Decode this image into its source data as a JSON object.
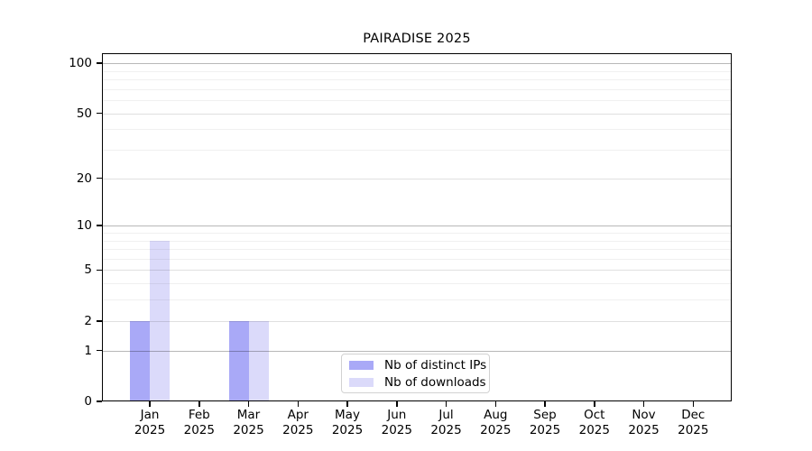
{
  "chart_data": {
    "type": "bar",
    "title": "PAIRADISE 2025",
    "categories": [
      "Jan",
      "Feb",
      "Mar",
      "Apr",
      "May",
      "Jun",
      "Jul",
      "Aug",
      "Sep",
      "Oct",
      "Nov",
      "Dec"
    ],
    "category_year": "2025",
    "series": [
      {
        "name": "Nb of distinct IPs",
        "color": "#a9a9f7",
        "values": [
          2,
          0,
          2,
          0,
          0,
          0,
          0,
          0,
          0,
          0,
          0,
          0
        ]
      },
      {
        "name": "Nb of downloads",
        "color": "#dbdafa",
        "values": [
          8,
          0,
          2,
          0,
          0,
          0,
          0,
          0,
          0,
          0,
          0,
          0
        ]
      }
    ],
    "yscale": "log1p",
    "y_ticks": [
      0,
      1,
      2,
      5,
      10,
      20,
      50,
      100
    ],
    "y_minor_gridlines": [
      3,
      4,
      6,
      7,
      8,
      9,
      30,
      40,
      60,
      70,
      80,
      90
    ],
    "xlabel": "",
    "ylabel": "",
    "grid": "horizontal",
    "legend_position": "bottom-center"
  },
  "colors": {
    "background": "#ffffff",
    "axis": "#000000",
    "text": "#000000",
    "major_grid": "rgba(0,0,0,0.28)",
    "mid_grid": "rgba(0,0,0,0.12)",
    "minor_grid": "rgba(0,0,0,0.06)",
    "legend_border": "#d2d2d2"
  }
}
